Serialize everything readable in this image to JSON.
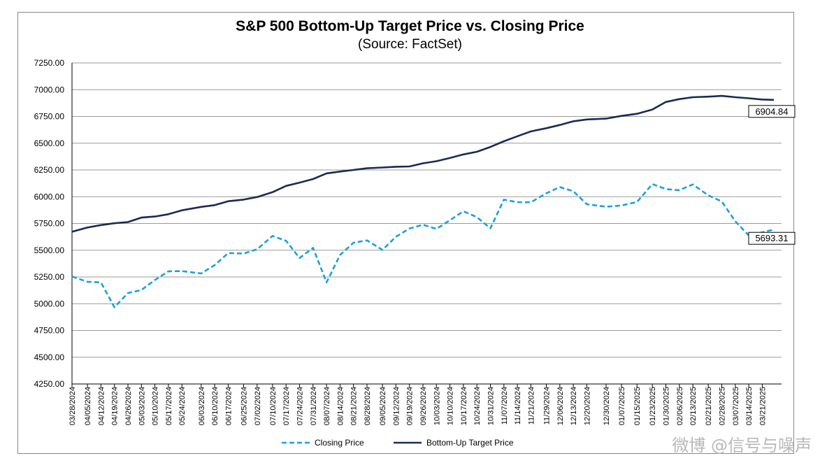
{
  "chart_data": {
    "type": "line",
    "title": "S&P 500 Bottom-Up Target Price vs. Closing Price",
    "subtitle": "(Source: FactSet)",
    "ylim": [
      4250,
      7250
    ],
    "yticks": [
      "4250.00",
      "4500.00",
      "4750.00",
      "5000.00",
      "5250.00",
      "5500.00",
      "5750.00",
      "6000.00",
      "6250.00",
      "6500.00",
      "6750.00",
      "7000.00",
      "7250.00"
    ],
    "x_tick_labels": [
      "03/28/2024",
      "04/05/2024",
      "04/12/2024",
      "04/19/2024",
      "04/26/2024",
      "05/03/2024",
      "05/10/2024",
      "05/17/2024",
      "05/24/2024",
      "06/03/2024",
      "06/10/2024",
      "06/17/2024",
      "06/25/2024",
      "07/02/2024",
      "07/10/2024",
      "07/17/2024",
      "07/24/2024",
      "07/31/2024",
      "08/07/2024",
      "08/14/2024",
      "08/21/2024",
      "08/28/2024",
      "09/05/2024",
      "09/12/2024",
      "09/19/2024",
      "09/26/2024",
      "10/03/2024",
      "10/10/2024",
      "10/17/2024",
      "10/24/2024",
      "10/31/2024",
      "11/07/2024",
      "11/14/2024",
      "11/21/2024",
      "11/29/2024",
      "12/06/2024",
      "12/13/2024",
      "12/20/2024",
      "12/30/2024",
      "01/07/2025",
      "01/15/2025",
      "01/23/2025",
      "01/30/2025",
      "02/06/2025",
      "02/13/2025",
      "02/21/2025",
      "02/28/2025",
      "03/07/2025",
      "03/14/2025",
      "03/21/2025"
    ],
    "x_dates": [
      "2024-03-28",
      "2024-04-05",
      "2024-04-12",
      "2024-04-19",
      "2024-04-26",
      "2024-05-03",
      "2024-05-10",
      "2024-05-17",
      "2024-05-24",
      "2024-06-03",
      "2024-06-10",
      "2024-06-17",
      "2024-06-25",
      "2024-07-02",
      "2024-07-10",
      "2024-07-17",
      "2024-07-24",
      "2024-07-31",
      "2024-08-07",
      "2024-08-14",
      "2024-08-21",
      "2024-08-28",
      "2024-09-05",
      "2024-09-12",
      "2024-09-19",
      "2024-09-26",
      "2024-10-03",
      "2024-10-10",
      "2024-10-17",
      "2024-10-24",
      "2024-10-31",
      "2024-11-07",
      "2024-11-14",
      "2024-11-21",
      "2024-11-29",
      "2024-12-06",
      "2024-12-13",
      "2024-12-20",
      "2024-12-30",
      "2025-01-07",
      "2025-01-15",
      "2025-01-23",
      "2025-01-30",
      "2025-02-06",
      "2025-02-13",
      "2025-02-21",
      "2025-02-28",
      "2025-03-07",
      "2025-03-14",
      "2025-03-21",
      "2025-03-27"
    ],
    "series": [
      {
        "name": "Closing Price",
        "style": "dashed",
        "color": "#1ba1d9",
        "values": [
          5254,
          5205,
          5199,
          4967,
          5100,
          5128,
          5222,
          5303,
          5305,
          5283,
          5361,
          5473,
          5469,
          5509,
          5633,
          5588,
          5427,
          5522,
          5199,
          5455,
          5570,
          5592,
          5503,
          5626,
          5702,
          5738,
          5699,
          5780,
          5864,
          5809,
          5705,
          5973,
          5949,
          5948,
          6032,
          6090,
          6051,
          5930,
          5906,
          5918,
          5950,
          6118,
          6071,
          6061,
          6115,
          6013,
          5955,
          5770,
          5638,
          5667,
          5693
        ],
        "last_label": "5693.31"
      },
      {
        "name": "Bottom-Up Target Price",
        "style": "solid",
        "color": "#1c2b52",
        "values": [
          5672,
          5712,
          5735,
          5752,
          5763,
          5805,
          5815,
          5836,
          5873,
          5905,
          5921,
          5958,
          5973,
          5997,
          6042,
          6101,
          6132,
          6165,
          6218,
          6235,
          6250,
          6266,
          6273,
          6280,
          6283,
          6312,
          6332,
          6362,
          6395,
          6420,
          6465,
          6518,
          6565,
          6610,
          6640,
          6670,
          6705,
          6722,
          6730,
          6755,
          6775,
          6815,
          6885,
          6912,
          6930,
          6935,
          6942,
          6930,
          6920,
          6908,
          6904.84
        ],
        "last_label": "6904.84"
      }
    ],
    "legend": "bottom-center",
    "grid": true
  },
  "watermark": "微博 @信号与噪声"
}
